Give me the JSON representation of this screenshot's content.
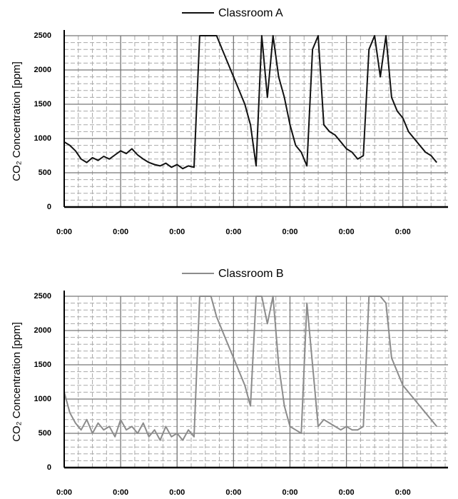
{
  "chart_data": [
    {
      "type": "line",
      "ylabel": "CO₂ Concentration [ppm]",
      "grid": true,
      "x": [
        0,
        0.1,
        0.2,
        0.3,
        0.4,
        0.5,
        0.6,
        0.7,
        0.8,
        0.9,
        1.0,
        1.1,
        1.2,
        1.3,
        1.4,
        1.5,
        1.6,
        1.7,
        1.8,
        1.9,
        2.0,
        2.1,
        2.2,
        2.3,
        2.4,
        2.5,
        2.6,
        2.7,
        2.8,
        2.9,
        3.0,
        3.1,
        3.2,
        3.3,
        3.4,
        3.5,
        3.6,
        3.7,
        3.8,
        3.9,
        4.0,
        4.1,
        4.2,
        4.3,
        4.4,
        4.5,
        4.6,
        4.7,
        4.8,
        4.9,
        5.0,
        5.1,
        5.2,
        5.3,
        5.4,
        5.5,
        5.6,
        5.7,
        5.8,
        5.9,
        6.0,
        6.1,
        6.2,
        6.3,
        6.4,
        6.5,
        6.6
      ],
      "series": [
        {
          "name": "Classroom A",
          "color": "#111111",
          "values": [
            950,
            900,
            820,
            700,
            650,
            720,
            680,
            740,
            700,
            760,
            820,
            780,
            850,
            760,
            700,
            650,
            620,
            600,
            640,
            580,
            620,
            560,
            600,
            580,
            2500,
            2500,
            2500,
            2500,
            2300,
            2100,
            1900,
            1700,
            1500,
            1200,
            600,
            2500,
            1600,
            2500,
            1900,
            1600,
            1200,
            900,
            800,
            600,
            2300,
            2500,
            1200,
            1100,
            1050,
            950,
            850,
            800,
            700,
            750,
            2300,
            2500,
            1900,
            2500,
            1600,
            1400,
            1300,
            1100,
            1000,
            900,
            800,
            750,
            650
          ]
        }
      ],
      "xlim": [
        0,
        6.8
      ],
      "xticks": [
        {
          "value": 0,
          "label": "0:00"
        },
        {
          "value": 1,
          "label": "0:00"
        },
        {
          "value": 2,
          "label": "0:00"
        },
        {
          "value": 3,
          "label": "0:00"
        },
        {
          "value": 4,
          "label": "0:00"
        },
        {
          "value": 5,
          "label": "0:00"
        },
        {
          "value": 6,
          "label": "0:00"
        }
      ],
      "ylim": [
        0,
        2500
      ],
      "yticks": [
        0,
        500,
        1000,
        1500,
        2000,
        2500
      ]
    },
    {
      "type": "line",
      "ylabel": "CO₂ Concentration [ppm]",
      "grid": true,
      "x": [
        0,
        0.1,
        0.2,
        0.3,
        0.4,
        0.5,
        0.6,
        0.7,
        0.8,
        0.9,
        1.0,
        1.1,
        1.2,
        1.3,
        1.4,
        1.5,
        1.6,
        1.7,
        1.8,
        1.9,
        2.0,
        2.1,
        2.2,
        2.3,
        2.4,
        2.5,
        2.6,
        2.7,
        2.8,
        2.9,
        3.0,
        3.1,
        3.2,
        3.3,
        3.4,
        3.5,
        3.6,
        3.7,
        3.8,
        3.9,
        4.0,
        4.1,
        4.2,
        4.3,
        4.4,
        4.5,
        4.6,
        4.7,
        4.8,
        4.9,
        5.0,
        5.1,
        5.2,
        5.3,
        5.4,
        5.5,
        5.6,
        5.7,
        5.8,
        5.9,
        6.0,
        6.1,
        6.2,
        6.3,
        6.4,
        6.5,
        6.6
      ],
      "series": [
        {
          "name": "Classroom B",
          "color": "#8c8c8c",
          "values": [
            1100,
            800,
            650,
            550,
            700,
            500,
            650,
            550,
            600,
            450,
            700,
            550,
            600,
            500,
            650,
            450,
            550,
            400,
            600,
            450,
            500,
            400,
            550,
            450,
            2500,
            2500,
            2500,
            2200,
            2000,
            1800,
            1600,
            1400,
            1200,
            900,
            2500,
            2500,
            2100,
            2500,
            1500,
            900,
            600,
            550,
            500,
            2400,
            1500,
            600,
            700,
            650,
            600,
            550,
            600,
            550,
            550,
            600,
            2500,
            2500,
            2500,
            2400,
            1600,
            1400,
            1200,
            1100,
            1000,
            900,
            800,
            700,
            600
          ]
        }
      ],
      "xlim": [
        0,
        6.8
      ],
      "xticks": [
        {
          "value": 0,
          "label": "0:00"
        },
        {
          "value": 1,
          "label": "0:00"
        },
        {
          "value": 2,
          "label": "0:00"
        },
        {
          "value": 3,
          "label": "0:00"
        },
        {
          "value": 4,
          "label": "0:00"
        },
        {
          "value": 5,
          "label": "0:00"
        },
        {
          "value": 6,
          "label": "0:00"
        }
      ],
      "ylim": [
        0,
        2500
      ],
      "yticks": [
        0,
        500,
        1000,
        1500,
        2000,
        2500
      ]
    }
  ]
}
